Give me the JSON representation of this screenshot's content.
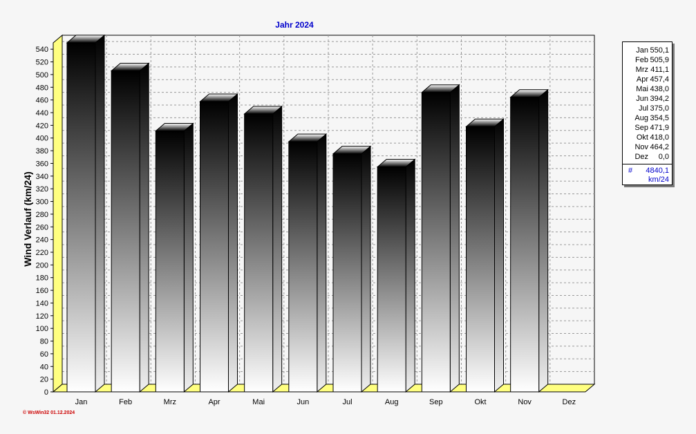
{
  "chart_data": {
    "type": "bar",
    "title": "Jahr  2024",
    "ylabel": "Wind Verlauf  (km/24)",
    "xlabel": "",
    "ylim": [
      0,
      550
    ],
    "y_ticks": [
      0,
      20,
      40,
      60,
      80,
      100,
      120,
      140,
      160,
      180,
      200,
      220,
      240,
      260,
      280,
      300,
      320,
      340,
      360,
      380,
      400,
      420,
      440,
      460,
      480,
      500,
      520,
      540
    ],
    "categories": [
      "Jan",
      "Feb",
      "Mrz",
      "Apr",
      "Mai",
      "Jun",
      "Jul",
      "Aug",
      "Sep",
      "Okt",
      "Nov",
      "Dez"
    ],
    "values": [
      550.1,
      505.9,
      411.1,
      457.4,
      438.0,
      394.2,
      375.0,
      354.5,
      471.9,
      418.0,
      464.2,
      0.0
    ],
    "grid": true,
    "legend_placement": "right"
  },
  "legend": {
    "rows": [
      {
        "month": "Jan",
        "value": "550,1"
      },
      {
        "month": "Feb",
        "value": "505,9"
      },
      {
        "month": "Mrz",
        "value": "411,1"
      },
      {
        "month": "Apr",
        "value": "457,4"
      },
      {
        "month": "Mai",
        "value": "438,0"
      },
      {
        "month": "Jun",
        "value": "394,2"
      },
      {
        "month": "Jul",
        "value": "375,0"
      },
      {
        "month": "Aug",
        "value": "354,5"
      },
      {
        "month": "Sep",
        "value": "471,9"
      },
      {
        "month": "Okt",
        "value": "418,0"
      },
      {
        "month": "Nov",
        "value": "464,2"
      },
      {
        "month": "Dez",
        "value": "0,0"
      }
    ],
    "sum_symbol": "#",
    "sum_value": "4840,1",
    "sum_unit": "km/24"
  },
  "footer": {
    "credit": "© WsWin32  01.12.2024"
  },
  "colors": {
    "title": "#0000cc",
    "floor": "#ffff80",
    "bar_top": "#000000",
    "bar_bottom": "#ffffff",
    "credit": "#cc0000"
  }
}
